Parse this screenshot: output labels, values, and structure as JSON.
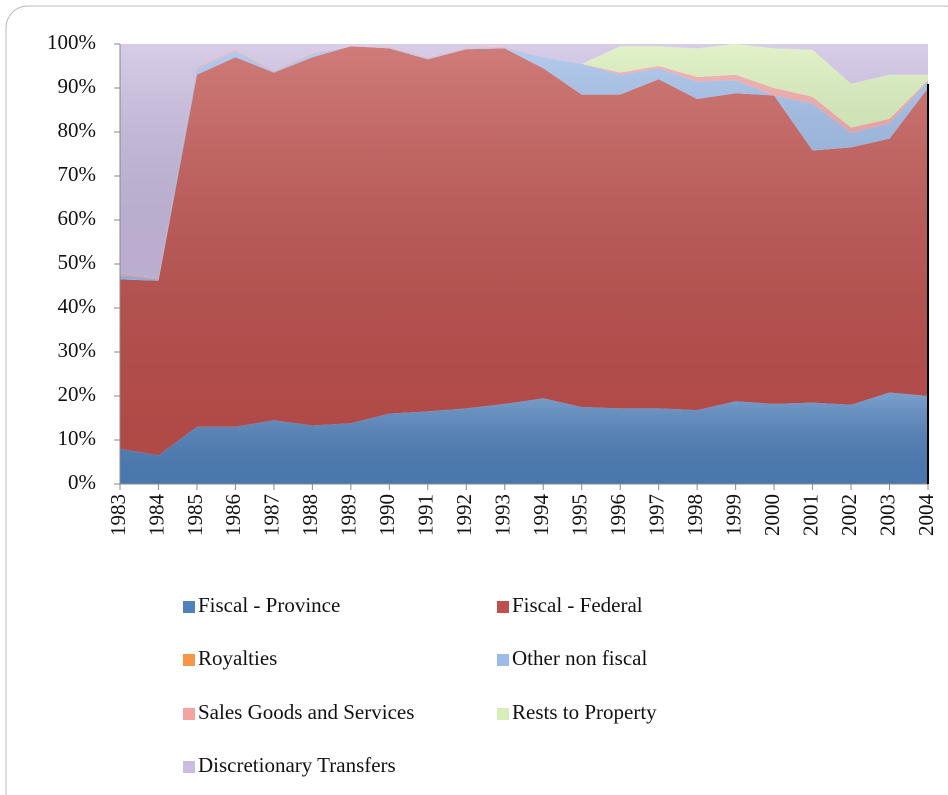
{
  "chart_data": {
    "type": "stacked_area",
    "categories": [
      "1983",
      "1984",
      "1985",
      "1986",
      "1987",
      "1988",
      "1989",
      "1990",
      "1991",
      "1992",
      "1993",
      "1994",
      "1995",
      "1996",
      "1997",
      "1998",
      "1999",
      "2000",
      "2001",
      "2002",
      "2003",
      "2004"
    ],
    "ylim": [
      0,
      100
    ],
    "yticks": [
      {
        "value": 0,
        "label": "0%"
      },
      {
        "value": 10,
        "label": "10%"
      },
      {
        "value": 20,
        "label": "20%"
      },
      {
        "value": 30,
        "label": "30%"
      },
      {
        "value": 40,
        "label": "40%"
      },
      {
        "value": 50,
        "label": "50%"
      },
      {
        "value": 60,
        "label": "60%"
      },
      {
        "value": 70,
        "label": "70%"
      },
      {
        "value": 80,
        "label": "80%"
      },
      {
        "value": 90,
        "label": "90%"
      },
      {
        "value": 100,
        "label": "100%"
      }
    ],
    "legend": "bottom",
    "series": [
      {
        "name": "Fiscal - Province",
        "color": "#4f81bd",
        "values": [
          8,
          6.5,
          13,
          13,
          14.5,
          13.3,
          13.8,
          16,
          16.5,
          17.2,
          18.2,
          19.5,
          17.5,
          17.2,
          17.2,
          16.8,
          18.8,
          18.2,
          18.5,
          18,
          20.8,
          20
        ]
      },
      {
        "name": "Fiscal - Federal",
        "color": "#c0504d",
        "values": [
          38.5,
          39.7,
          80,
          84,
          79,
          83.7,
          85.7,
          83,
          80,
          81.6,
          80.8,
          75,
          71,
          71.3,
          74.8,
          70.7,
          70,
          70.1,
          57.3,
          58.5,
          57.7,
          70
        ]
      },
      {
        "name": "Royalties",
        "color": "#f79646",
        "values": [
          0,
          0,
          0,
          0,
          0,
          0,
          0,
          0,
          0,
          0,
          0,
          0,
          0,
          0,
          0,
          0,
          0,
          0,
          0,
          0,
          0,
          0
        ]
      },
      {
        "name": "Other non fiscal",
        "color": "#9dbbe8",
        "values": [
          1,
          0.3,
          1.5,
          1.5,
          0.3,
          0.8,
          0,
          0.2,
          0.3,
          0.2,
          0.2,
          2.5,
          7,
          4.5,
          2.5,
          4,
          3,
          0,
          10.7,
          3.3,
          3.5,
          1.5
        ]
      },
      {
        "name": "Sales Goods and Services",
        "color": "#f3a3a2",
        "values": [
          0.3,
          0.2,
          0.3,
          0.3,
          0.2,
          0.2,
          0,
          0.2,
          0.2,
          0.2,
          0.2,
          0,
          0,
          0.5,
          0.5,
          1,
          1.2,
          1.7,
          1.5,
          1.2,
          1,
          0.3
        ]
      },
      {
        "name": "Rests to Property",
        "color": "#d8eeb8",
        "values": [
          0,
          0,
          0,
          0,
          0,
          0,
          0,
          0,
          0,
          0,
          0,
          0,
          0,
          6,
          4.5,
          6.5,
          7,
          9,
          10.7,
          10,
          10,
          1.2
        ]
      },
      {
        "name": "Discretionary Transfers",
        "color": "#cbbde2",
        "values": [
          52.2,
          53.3,
          5.2,
          1.2,
          6,
          2,
          0.5,
          0.6,
          3,
          0.8,
          0.6,
          3,
          4.5,
          0.5,
          0.5,
          1,
          0,
          1,
          1.3,
          9,
          7,
          7
        ]
      }
    ]
  }
}
